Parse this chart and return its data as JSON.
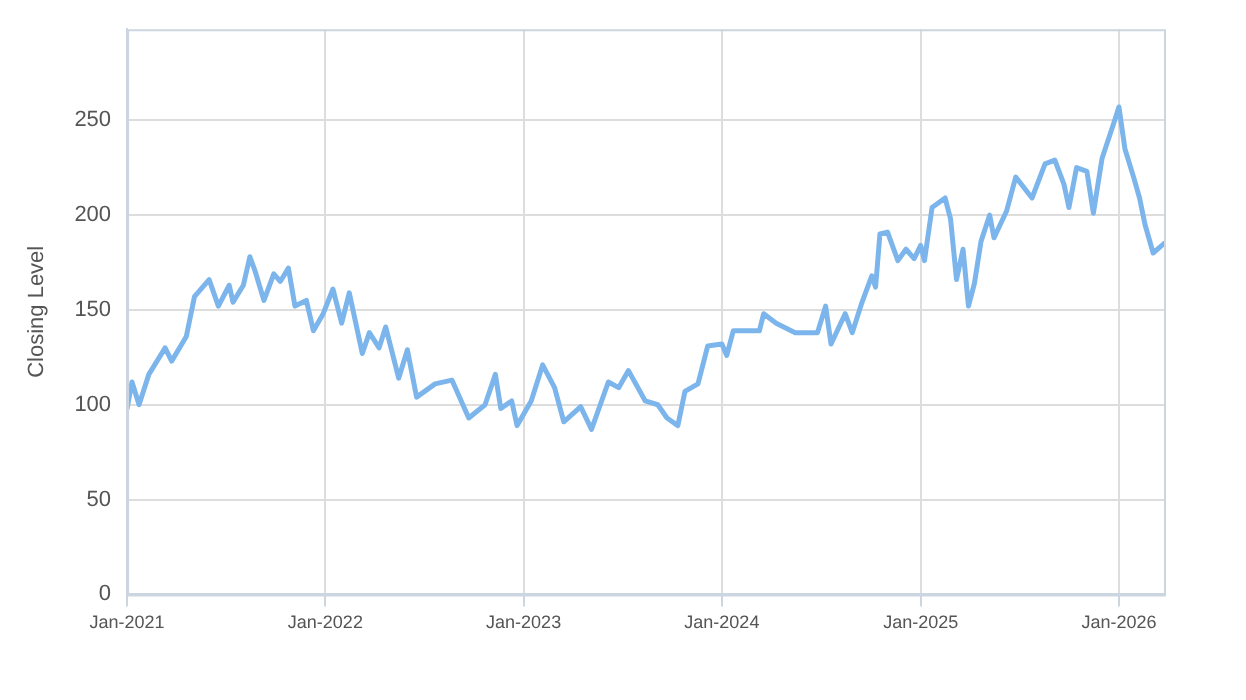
{
  "chart_data": {
    "type": "line",
    "ylabel": "Closing Level",
    "x": [
      "2021-01-01",
      "2021-01-10",
      "2021-01-23",
      "2021-02-10",
      "2021-03-12",
      "2021-03-24",
      "2021-04-20",
      "2021-05-05",
      "2021-06-01",
      "2021-06-18",
      "2021-07-08",
      "2021-07-15",
      "2021-08-03",
      "2021-08-15",
      "2021-08-24",
      "2021-09-10",
      "2021-09-28",
      "2021-10-10",
      "2021-10-25",
      "2021-11-06",
      "2021-11-27",
      "2021-12-10",
      "2021-12-28",
      "2022-01-15",
      "2022-01-31",
      "2022-02-14",
      "2022-03-10",
      "2022-03-23",
      "2022-04-10",
      "2022-04-22",
      "2022-05-16",
      "2022-06-01",
      "2022-06-18",
      "2022-07-22",
      "2022-08-22",
      "2022-09-22",
      "2022-10-22",
      "2022-11-10",
      "2022-11-20",
      "2022-12-10",
      "2022-12-20",
      "2023-01-15",
      "2023-02-05",
      "2023-02-27",
      "2023-03-16",
      "2023-04-16",
      "2023-05-06",
      "2023-06-06",
      "2023-06-25",
      "2023-07-13",
      "2023-08-13",
      "2023-09-05",
      "2023-09-22",
      "2023-10-12",
      "2023-10-25",
      "2023-11-18",
      "2023-12-06",
      "2024-01-01",
      "2024-01-10",
      "2024-01-22",
      "2024-03-10",
      "2024-03-18",
      "2024-04-10",
      "2024-05-15",
      "2024-06-25",
      "2024-07-10",
      "2024-07-20",
      "2024-08-15",
      "2024-08-28",
      "2024-09-15",
      "2024-10-03",
      "2024-10-10",
      "2024-10-18",
      "2024-11-01",
      "2024-11-20",
      "2024-12-05",
      "2024-12-20",
      "2025-01-01",
      "2025-01-08",
      "2025-01-22",
      "2025-02-15",
      "2025-02-25",
      "2025-03-08",
      "2025-03-20",
      "2025-03-30",
      "2025-04-10",
      "2025-04-22",
      "2025-05-08",
      "2025-05-16",
      "2025-06-08",
      "2025-06-25",
      "2025-07-25",
      "2025-08-18",
      "2025-09-05",
      "2025-09-22",
      "2025-10-01",
      "2025-10-15",
      "2025-11-03",
      "2025-11-15",
      "2025-12-01",
      "2025-12-22",
      "2026-01-01",
      "2026-01-12",
      "2026-01-28",
      "2026-02-08",
      "2026-02-18",
      "2026-03-05",
      "2026-03-25"
    ],
    "series": [
      {
        "color": "#7cb5ec",
        "values": [
          98,
          112,
          100,
          116,
          130,
          123,
          136,
          157,
          166,
          152,
          163,
          154,
          163,
          178,
          171,
          155,
          169,
          165,
          172,
          152,
          155,
          139,
          148,
          161,
          143,
          159,
          127,
          138,
          130,
          141,
          114,
          129,
          104,
          111,
          113,
          93,
          100,
          116,
          98,
          102,
          89,
          102,
          121,
          109,
          91,
          99,
          87,
          112,
          109,
          118,
          102,
          100,
          93,
          89,
          107,
          111,
          131,
          132,
          126,
          139,
          139,
          148,
          143,
          138,
          138,
          152,
          132,
          148,
          138,
          154,
          168,
          162,
          190,
          191,
          176,
          182,
          177,
          184,
          176,
          204,
          209,
          198,
          166,
          182,
          152,
          164,
          186,
          200,
          188,
          202,
          220,
          209,
          227,
          229,
          216,
          204,
          225,
          223,
          201,
          230,
          248,
          257,
          235,
          220,
          209,
          195,
          180,
          185
        ]
      }
    ],
    "xlim": [
      "2021-01-01",
      "2026-03-25"
    ],
    "xticks": [
      {
        "value": "2021-01",
        "label": "Jan-2021"
      },
      {
        "value": "2022-01",
        "label": "Jan-2022"
      },
      {
        "value": "2023-01",
        "label": "Jan-2023"
      },
      {
        "value": "2024-01",
        "label": "Jan-2024"
      },
      {
        "value": "2025-01",
        "label": "Jan-2025"
      },
      {
        "value": "2026-01",
        "label": "Jan-2026"
      }
    ],
    "ylim": [
      0,
      298
    ],
    "yticks": [
      0,
      50,
      100,
      150,
      200,
      250
    ],
    "grid": true,
    "legend": false,
    "marker": "none",
    "line_style": "solid"
  }
}
